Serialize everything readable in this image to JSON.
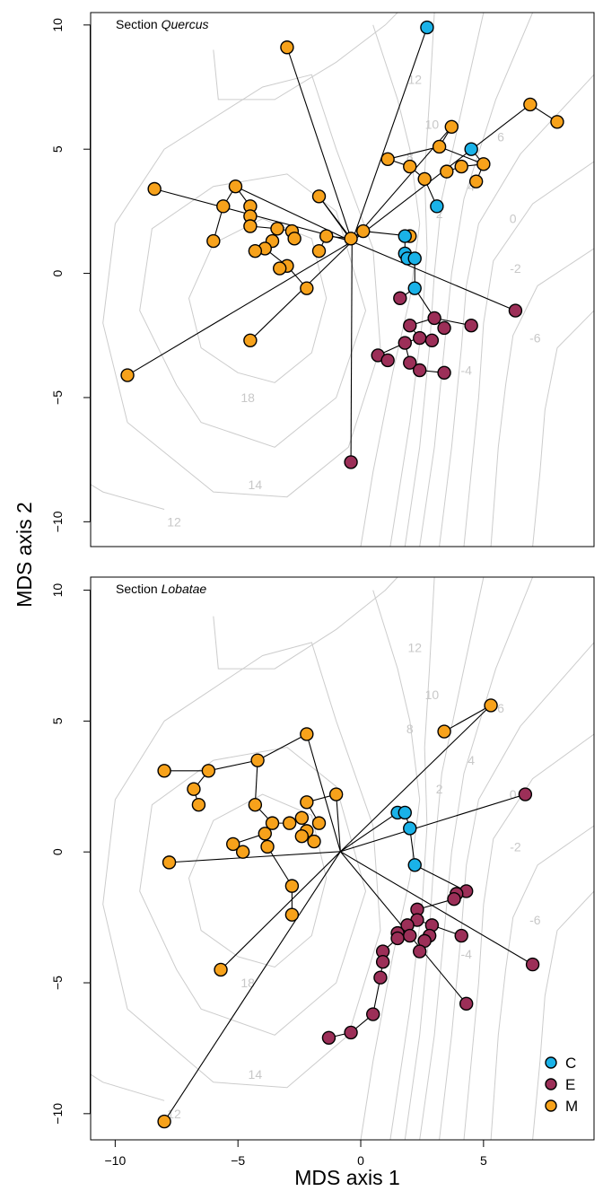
{
  "chart_data": {
    "type": "scatter",
    "xlabel": "MDS axis 1",
    "ylabel": "MDS axis 2",
    "xlim": [
      -11,
      9.5
    ],
    "ylim": [
      -11,
      10.5
    ],
    "xticks": [
      -10,
      -5,
      0,
      5
    ],
    "yticks": [
      -10,
      -5,
      0,
      5,
      10
    ],
    "colors": {
      "C": "#1ab2e8",
      "E": "#9c2f58",
      "M": "#f7a21b"
    },
    "legend": {
      "position": "bottom-right",
      "entries": [
        {
          "key": "C",
          "label": "C"
        },
        {
          "key": "E",
          "label": "E"
        },
        {
          "key": "M",
          "label": "M"
        }
      ]
    },
    "contour_labels": [
      "18",
      "14",
      "12",
      "12",
      "10",
      "8",
      "6",
      "4",
      "2",
      "0",
      "-2",
      "-4",
      "-6"
    ],
    "panels": [
      {
        "title_prefix": "Section ",
        "title_italic": "Quercus",
        "points": {
          "C": [
            [
              2.7,
              9.9
            ],
            [
              4.5,
              5.0
            ],
            [
              3.1,
              2.7
            ],
            [
              1.8,
              1.5
            ],
            [
              1.8,
              0.8
            ],
            [
              1.9,
              0.6
            ],
            [
              2.2,
              0.6
            ],
            [
              2.2,
              -0.6
            ]
          ],
          "E": [
            [
              6.3,
              -1.5
            ],
            [
              3.0,
              -1.8
            ],
            [
              4.5,
              -2.1
            ],
            [
              2.0,
              -2.1
            ],
            [
              2.4,
              -2.6
            ],
            [
              1.8,
              -2.8
            ],
            [
              2.9,
              -2.7
            ],
            [
              3.4,
              -2.2
            ],
            [
              0.7,
              -3.3
            ],
            [
              1.1,
              -3.5
            ],
            [
              2.0,
              -3.6
            ],
            [
              2.4,
              -3.9
            ],
            [
              3.4,
              -4.0
            ],
            [
              1.6,
              -1.0
            ],
            [
              -0.4,
              -7.6
            ]
          ],
          "M": [
            [
              -3.0,
              9.1
            ],
            [
              6.9,
              6.8
            ],
            [
              8.0,
              6.1
            ],
            [
              3.7,
              5.9
            ],
            [
              3.2,
              5.1
            ],
            [
              5.0,
              4.4
            ],
            [
              1.1,
              4.6
            ],
            [
              2.0,
              4.3
            ],
            [
              4.1,
              4.3
            ],
            [
              3.5,
              4.1
            ],
            [
              4.7,
              3.7
            ],
            [
              2.6,
              3.8
            ],
            [
              -8.4,
              3.4
            ],
            [
              -5.1,
              3.5
            ],
            [
              -1.7,
              3.1
            ],
            [
              -5.6,
              2.7
            ],
            [
              -4.5,
              2.7
            ],
            [
              -4.5,
              2.3
            ],
            [
              -4.5,
              1.9
            ],
            [
              -3.4,
              1.8
            ],
            [
              -2.8,
              1.7
            ],
            [
              -0.4,
              1.4
            ],
            [
              0.1,
              1.7
            ],
            [
              -1.4,
              1.5
            ],
            [
              2.0,
              1.5
            ],
            [
              -6.0,
              1.3
            ],
            [
              -3.6,
              1.3
            ],
            [
              -3.9,
              1.0
            ],
            [
              -4.3,
              0.9
            ],
            [
              -1.7,
              0.9
            ],
            [
              -3.0,
              0.3
            ],
            [
              -3.3,
              0.2
            ],
            [
              -2.2,
              -0.6
            ],
            [
              -4.5,
              -2.7
            ],
            [
              -9.5,
              -4.1
            ],
            [
              -2.7,
              1.4
            ]
          ]
        }
      },
      {
        "title_prefix": "Section ",
        "title_italic": "Lobatae",
        "points": {
          "C": [
            [
              1.5,
              1.5
            ],
            [
              1.8,
              1.5
            ],
            [
              2.0,
              0.9
            ],
            [
              2.2,
              -0.5
            ]
          ],
          "E": [
            [
              6.7,
              2.2
            ],
            [
              7.0,
              -4.3
            ],
            [
              4.3,
              -1.5
            ],
            [
              3.9,
              -1.6
            ],
            [
              3.8,
              -1.8
            ],
            [
              2.3,
              -2.2
            ],
            [
              2.3,
              -2.6
            ],
            [
              1.9,
              -2.8
            ],
            [
              2.9,
              -2.8
            ],
            [
              4.1,
              -3.2
            ],
            [
              1.5,
              -3.1
            ],
            [
              2.0,
              -3.2
            ],
            [
              1.5,
              -3.3
            ],
            [
              2.8,
              -3.2
            ],
            [
              2.6,
              -3.4
            ],
            [
              2.4,
              -3.8
            ],
            [
              0.9,
              -3.8
            ],
            [
              0.9,
              -4.2
            ],
            [
              0.8,
              -4.8
            ],
            [
              4.3,
              -5.8
            ],
            [
              0.5,
              -6.2
            ],
            [
              -0.4,
              -6.9
            ],
            [
              -1.3,
              -7.1
            ]
          ],
          "M": [
            [
              5.3,
              5.6
            ],
            [
              3.4,
              4.6
            ],
            [
              -2.2,
              4.5
            ],
            [
              -4.2,
              3.5
            ],
            [
              -6.2,
              3.1
            ],
            [
              -8.0,
              3.1
            ],
            [
              -6.8,
              2.4
            ],
            [
              -1.0,
              2.2
            ],
            [
              -2.2,
              1.9
            ],
            [
              -6.6,
              1.8
            ],
            [
              -4.3,
              1.8
            ],
            [
              -1.7,
              1.1
            ],
            [
              -3.6,
              1.1
            ],
            [
              -2.9,
              1.1
            ],
            [
              -2.4,
              1.3
            ],
            [
              -2.2,
              0.8
            ],
            [
              -3.9,
              0.7
            ],
            [
              -2.4,
              0.6
            ],
            [
              -1.9,
              0.4
            ],
            [
              -5.2,
              0.3
            ],
            [
              -4.8,
              0.0
            ],
            [
              -3.8,
              0.2
            ],
            [
              -7.8,
              -0.4
            ],
            [
              -2.8,
              -1.3
            ],
            [
              -2.8,
              -2.4
            ],
            [
              -5.7,
              -4.5
            ],
            [
              -8.0,
              -10.3
            ]
          ]
        }
      }
    ]
  }
}
